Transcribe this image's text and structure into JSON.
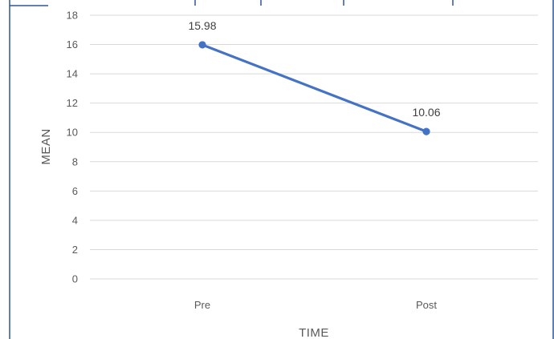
{
  "chart_data": {
    "type": "line",
    "title": "",
    "xlabel": "TIME",
    "ylabel": "MEAN",
    "categories": [
      "Pre",
      "Post"
    ],
    "series": [
      {
        "values": [
          15.98,
          10.06
        ],
        "color": "#4472C4"
      }
    ],
    "data_labels": [
      "15.98",
      "10.06"
    ],
    "ylim": [
      0,
      18
    ],
    "yticks": [
      0,
      2,
      4,
      6,
      8,
      10,
      12,
      14,
      16,
      18
    ],
    "grid": true,
    "gridline_color": "#d9d9d9",
    "frame_color": "#2f5597"
  }
}
